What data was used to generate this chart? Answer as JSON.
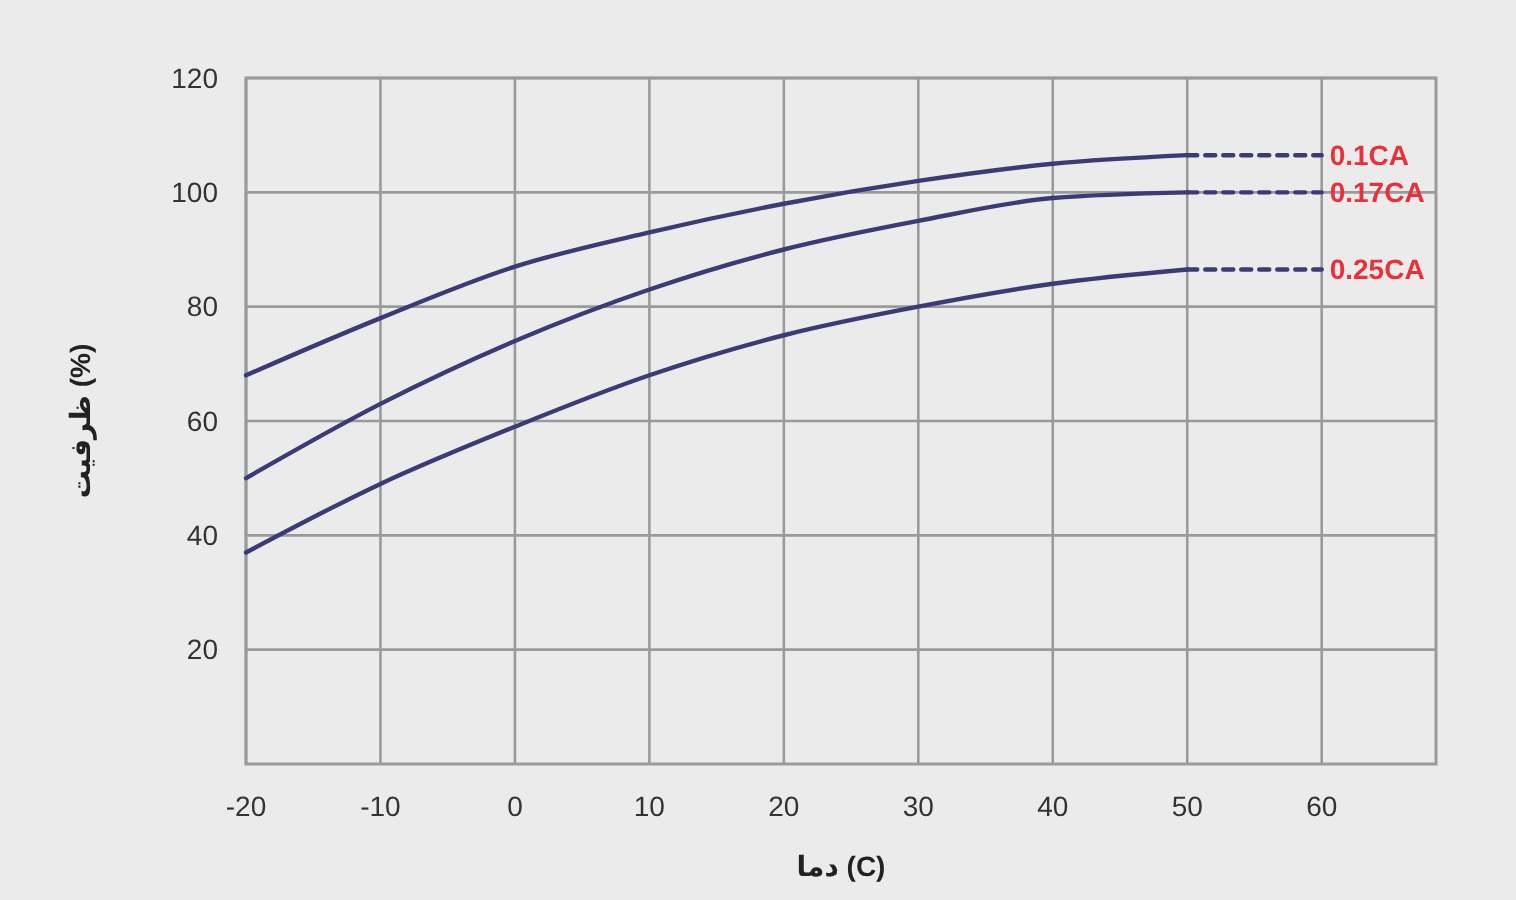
{
  "chart_data": {
    "type": "line",
    "xlabel": "دما (C)",
    "ylabel": "ظرفیت (%)",
    "xlim": [
      -20,
      68.5
    ],
    "ylim": [
      0,
      120
    ],
    "xticks": [
      -20,
      -10,
      0,
      10,
      20,
      30,
      40,
      50,
      60
    ],
    "yticks": [
      20,
      40,
      60,
      80,
      100,
      120
    ],
    "grid": true,
    "marker": "none",
    "series": [
      {
        "name": "0.1CA",
        "color": "#3d3a78",
        "x": [
          -20,
          -10,
          0,
          10,
          20,
          30,
          40,
          50
        ],
        "values": [
          68,
          78,
          87,
          93,
          98,
          102,
          105,
          106.5
        ]
      },
      {
        "name": "0.17CA",
        "color": "#3d3a78",
        "x": [
          -20,
          -10,
          0,
          10,
          20,
          30,
          40,
          50
        ],
        "values": [
          50,
          63,
          74,
          83,
          90,
          95,
          99,
          100
        ]
      },
      {
        "name": "0.25CA",
        "color": "#3d3a78",
        "x": [
          -20,
          -10,
          0,
          10,
          20,
          30,
          40,
          50
        ],
        "values": [
          37,
          49,
          59,
          68,
          75,
          80,
          84,
          86.5
        ]
      },
      {
        "color": "#3d3a78",
        "line_style": "dashed",
        "x": [
          50,
          60
        ],
        "values": [
          106.5,
          106.5
        ]
      },
      {
        "color": "#3d3a78",
        "line_style": "dashed",
        "x": [
          50,
          60
        ],
        "values": [
          100,
          100
        ]
      },
      {
        "color": "#3d3a78",
        "line_style": "dashed",
        "x": [
          50,
          60
        ],
        "values": [
          86.5,
          86.5
        ]
      }
    ]
  }
}
